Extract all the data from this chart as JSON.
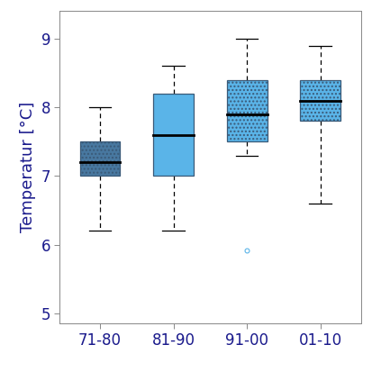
{
  "categories": [
    "71-80",
    "81-90",
    "91-00",
    "01-10"
  ],
  "box_data": [
    {
      "q1": 7.0,
      "median": 7.2,
      "q3": 7.5,
      "whisker_low": 6.2,
      "whisker_high": 8.0,
      "outliers": []
    },
    {
      "q1": 7.0,
      "median": 7.6,
      "q3": 8.2,
      "whisker_low": 6.2,
      "whisker_high": 8.6,
      "outliers": []
    },
    {
      "q1": 7.5,
      "median": 7.9,
      "q3": 8.4,
      "whisker_low": 7.3,
      "whisker_high": 9.0,
      "outliers": [
        5.92
      ]
    },
    {
      "q1": 7.8,
      "median": 8.1,
      "q3": 8.4,
      "whisker_low": 6.6,
      "whisker_high": 8.9,
      "outliers": []
    }
  ],
  "colors": [
    "#4878a0",
    "#5ab4e8",
    "#5ab4e8",
    "#5ab4e8"
  ],
  "hatch_patterns": [
    "....",
    "",
    "....",
    "...."
  ],
  "edge_colors": [
    "#3a5a78",
    "#3a5a78",
    "#3a5a78",
    "#3a5a78"
  ],
  "ylim": [
    4.85,
    9.4
  ],
  "yticks": [
    5,
    6,
    7,
    8,
    9
  ],
  "ylabel": "Temperatur [°C]",
  "background_color": "#ffffff",
  "box_width": 0.55,
  "outlier_color": "#5ab4e8",
  "median_color": "#000000",
  "whisker_color": "#000000",
  "tick_fontsize": 12,
  "label_fontsize": 13
}
